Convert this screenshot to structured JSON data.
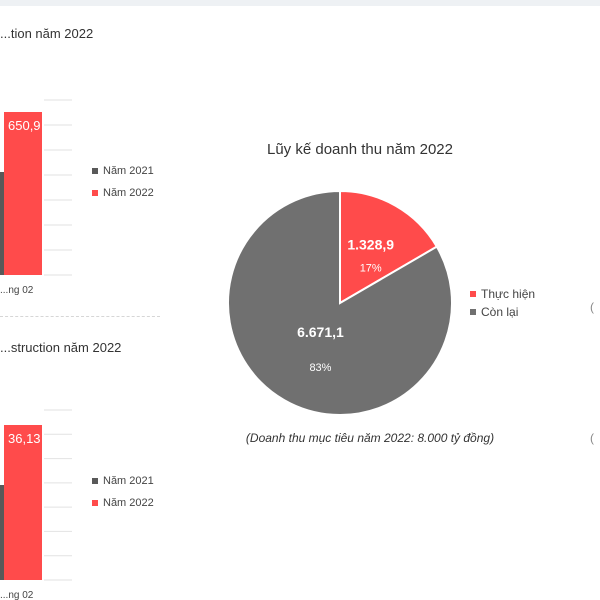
{
  "chart_data": [
    {
      "type": "bar",
      "title": "...tion năm 2022",
      "categories": [
        "...ng 02"
      ],
      "series": [
        {
          "name": "Năm 2021",
          "color": "#595959",
          "values": [
            null
          ]
        },
        {
          "name": "Năm 2022",
          "color": "#ff4b4b",
          "values": [
            650.9
          ]
        }
      ],
      "data_labels": [
        "650,9"
      ],
      "grid": true,
      "legend": "right"
    },
    {
      "type": "bar",
      "title": "...struction năm 2022",
      "categories": [
        "...ng 02"
      ],
      "series": [
        {
          "name": "Năm 2021",
          "color": "#595959",
          "values": [
            null
          ]
        },
        {
          "name": "Năm 2022",
          "color": "#ff4b4b",
          "values": [
            36.13
          ]
        }
      ],
      "data_labels": [
        "36,13"
      ],
      "grid": true,
      "legend": "right"
    },
    {
      "type": "pie",
      "title": "Lũy kế doanh thu năm 2022",
      "slices": [
        {
          "label": "Thực hiện",
          "value": 1328.9,
          "value_text": "1.328,9",
          "percent": "17%",
          "color": "#ff4b4b"
        },
        {
          "label": "Còn lại",
          "value": 6671.1,
          "value_text": "6.671,1",
          "percent": "83%",
          "color": "#707070"
        }
      ],
      "note": "(Doanh thu mục tiêu năm 2022: 8.000 tỷ đồng)",
      "legend": "right"
    }
  ],
  "edge_marks": {
    "right_top": "(",
    "right_bottom": "("
  }
}
